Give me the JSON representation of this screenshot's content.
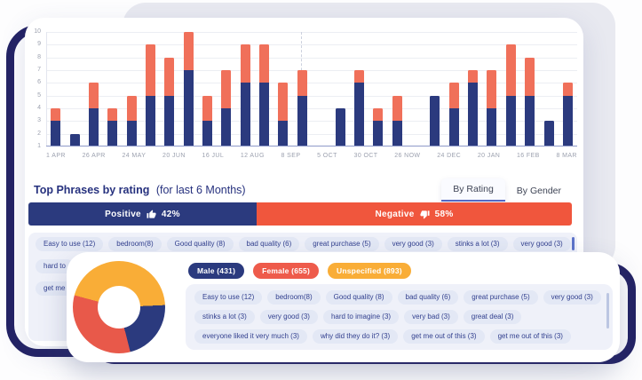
{
  "colors": {
    "navy": "#2B3A7E",
    "chart_orange": "#F0705A",
    "negative_red": "#F0563D",
    "female_red": "#EE5B4B",
    "donut_red": "#E8594A",
    "donut_orange": "#F9AD37",
    "frame_navy": "#232264",
    "chip_bg": "#E3E8F5",
    "chip_text": "#33418F",
    "box_bg": "#EFF1F9",
    "tab_underline": "#5468C4",
    "title_navy": "#26317E"
  },
  "chart_data": {
    "type": "bar",
    "stacked": true,
    "grid": "horizontal",
    "y_axis": {
      "min": 1,
      "max": 10,
      "ticks": [
        10,
        9,
        8,
        7,
        6,
        5,
        4,
        3,
        2,
        1
      ]
    },
    "x_labels": [
      "1 APR",
      "26 APR",
      "24 MAY",
      "20 JUN",
      "16 JUL",
      "12 AUG",
      "8 SEP",
      "5 OCT",
      "30 OCT",
      "26 NOW",
      "24 DEC",
      "20 JAN",
      "16 FEB",
      "8 MAR"
    ],
    "series": [
      {
        "name": "navy-bottom-segment"
      },
      {
        "name": "orange-top-segment"
      }
    ],
    "bars": [
      {
        "navy_top": 3,
        "total_top": 4
      },
      {
        "navy_top": 2,
        "total_top": 2
      },
      {
        "navy_top": 4,
        "total_top": 6
      },
      {
        "navy_top": 3,
        "total_top": 4
      },
      {
        "navy_top": 3,
        "total_top": 5
      },
      {
        "navy_top": 5,
        "total_top": 9
      },
      {
        "navy_top": 5,
        "total_top": 8
      },
      {
        "navy_top": 7,
        "total_top": 10
      },
      {
        "navy_top": 3,
        "total_top": 5
      },
      {
        "navy_top": 4,
        "total_top": 7
      },
      {
        "navy_top": 6,
        "total_top": 9
      },
      {
        "navy_top": 6,
        "total_top": 9
      },
      {
        "navy_top": 3,
        "total_top": 6
      },
      {
        "navy_top": 5,
        "total_top": 7
      },
      null,
      {
        "navy_top": 4,
        "total_top": 4
      },
      {
        "navy_top": 6,
        "total_top": 7
      },
      {
        "navy_top": 3,
        "total_top": 4
      },
      {
        "navy_top": 3,
        "total_top": 5
      },
      null,
      {
        "navy_top": 5,
        "total_top": 5
      },
      {
        "navy_top": 4,
        "total_top": 6
      },
      {
        "navy_top": 6,
        "total_top": 7
      },
      {
        "navy_top": 4,
        "total_top": 7
      },
      {
        "navy_top": 5,
        "total_top": 9
      },
      {
        "navy_top": 5,
        "total_top": 8
      },
      {
        "navy_top": 3,
        "total_top": 3
      },
      {
        "navy_top": 5,
        "total_top": 6
      }
    ],
    "dashed_marker_x_fraction": 0.48
  },
  "phrases": {
    "title": "Top Phrases by rating",
    "subtitle": "(for last 6 Months)",
    "tabs": [
      {
        "label": "By Rating",
        "active": true
      },
      {
        "label": "By Gender",
        "active": false
      }
    ],
    "sentiment": {
      "positive": {
        "label": "Positive",
        "percent": "42%",
        "value": 42
      },
      "negative": {
        "label": "Negative",
        "percent": "58%",
        "value": 58
      }
    },
    "chip_rows": [
      [
        "Easy to use (12)",
        "bedroom(8)",
        "Good quality (8)",
        "bad quality (6)",
        "great purchase (5)",
        "very good (3)",
        "stinks a lot (3)",
        "very good (3)"
      ],
      [
        "hard to"
      ],
      [
        "get me"
      ]
    ]
  },
  "gender_card": {
    "badges": [
      {
        "label": "Male (431)",
        "color": "#2B3A7E"
      },
      {
        "label": "Female (655)",
        "color": "#EE5B4B"
      },
      {
        "label": "Unspecified (893)",
        "color": "#F9AD37"
      }
    ],
    "donut": {
      "start_angle": 285,
      "segments": [
        {
          "name": "Unspecified",
          "value": 893,
          "color": "#F9AD37"
        },
        {
          "name": "Male",
          "value": 431,
          "color": "#2B3A7E"
        },
        {
          "name": "Female",
          "value": 655,
          "color": "#E8594A"
        }
      ]
    },
    "chip_rows": [
      [
        "Easy to use (12)",
        "bedroom(8)",
        "Good quality (8)",
        "bad quality (6)",
        "great purchase (5)",
        "very good (3)"
      ],
      [
        "stinks a lot (3)",
        "very good (3)",
        "hard to imagine (3)",
        "very bad (3)",
        "great deal (3)"
      ],
      [
        "everyone liked it very much (3)",
        "why did they do it? (3)",
        "get me out of this (3)",
        "get me out of this (3)"
      ]
    ]
  }
}
